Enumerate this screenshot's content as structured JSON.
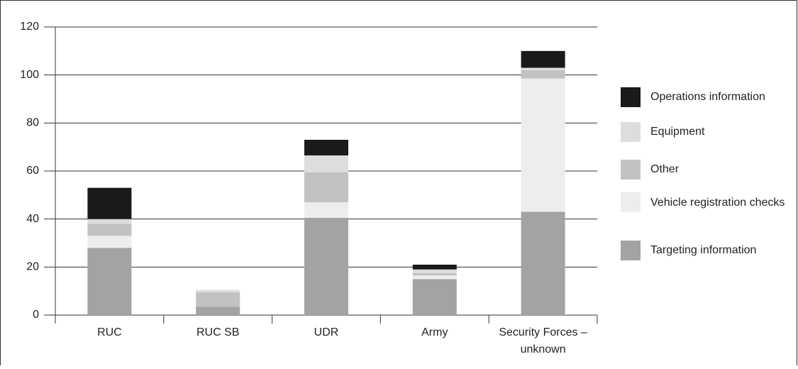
{
  "chart_data": {
    "type": "stacked_bar",
    "categories": [
      "RUC",
      "RUC SB",
      "UDR",
      "Army",
      "Security Forces – unknown"
    ],
    "series": [
      {
        "name": "Targeting information",
        "color": "#a3a3a3",
        "values": [
          28,
          3.5,
          40.5,
          15,
          43
        ]
      },
      {
        "name": "Vehicle registration checks",
        "color": "#ededed",
        "values": [
          5,
          0,
          6.5,
          1.5,
          55.5
        ]
      },
      {
        "name": "Other",
        "color": "#c2c2c2",
        "values": [
          5,
          6,
          12.5,
          1,
          3.5
        ]
      },
      {
        "name": "Equipment",
        "color": "#dcdddc",
        "values": [
          2,
          1,
          7,
          1.5,
          1
        ]
      },
      {
        "name": "Operations information",
        "color": "#1a1a1a",
        "values": [
          13,
          0,
          6.5,
          2,
          7
        ]
      }
    ],
    "ylim": [
      0,
      120
    ],
    "yticks": [
      0,
      20,
      40,
      60,
      80,
      100,
      120
    ],
    "grid": true,
    "legend": "right"
  }
}
